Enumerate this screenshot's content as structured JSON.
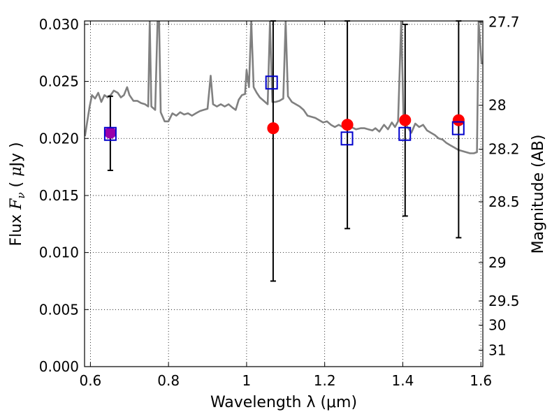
{
  "chart_data": {
    "type": "scatter",
    "xlabel": "Wavelength  λ (μm)",
    "ylabel_parts": [
      "Flux  ",
      "F",
      "ν",
      "  ( ",
      "μ",
      "Jy )"
    ],
    "y2label": "Magnitude (AB)",
    "xlim": [
      0.585,
      1.605
    ],
    "ylim": [
      0.0,
      0.0303
    ],
    "x_ticks": [
      0.6,
      0.8,
      1.0,
      1.2,
      1.4,
      1.6
    ],
    "x_tick_labels": [
      "0.6",
      "0.8",
      "1",
      "1.2",
      "1.4",
      "1.6"
    ],
    "y_ticks": [
      0.0,
      0.005,
      0.01,
      0.015,
      0.02,
      0.025,
      0.03
    ],
    "y_tick_labels": [
      "0.000",
      "0.005",
      "0.010",
      "0.015",
      "0.020",
      "0.025",
      "0.030"
    ],
    "magnitude_ticks": [
      27.7,
      28,
      28.2,
      28.5,
      29,
      29.5,
      30,
      31
    ],
    "magnitude_tick_labels": [
      "27.7",
      "28",
      "28.2",
      "28.5",
      "29",
      "29.5",
      "30",
      "31"
    ],
    "grid": true,
    "colors": {
      "observed": "#ff0000",
      "model": "#0000cc",
      "spectrum": "#808080",
      "errorbar": "#000000",
      "overlap": "#9900aa"
    },
    "series": [
      {
        "marker": "filled-circle",
        "x": [
          0.651,
          1.068,
          1.258,
          1.406,
          1.543
        ],
        "y": [
          0.0205,
          0.0209,
          0.0212,
          0.0216,
          0.0216
        ],
        "yerr_low": [
          0.0172,
          0.0075,
          0.0121,
          0.0132,
          0.0113
        ],
        "yerr_high": [
          0.0237,
          0.0303,
          0.0303,
          0.03,
          0.0303
        ]
      },
      {
        "marker": "open-square",
        "x": [
          0.651,
          1.064,
          1.257,
          1.405,
          1.542
        ],
        "y": [
          0.0204,
          0.0249,
          0.02,
          0.0204,
          0.0209
        ]
      },
      {
        "marker": "line",
        "points": [
          [
            0.586,
            0.0202
          ],
          [
            0.592,
            0.0215
          ],
          [
            0.598,
            0.0228
          ],
          [
            0.604,
            0.0238
          ],
          [
            0.612,
            0.0235
          ],
          [
            0.62,
            0.024
          ],
          [
            0.628,
            0.0232
          ],
          [
            0.636,
            0.0238
          ],
          [
            0.644,
            0.0236
          ],
          [
            0.652,
            0.0238
          ],
          [
            0.66,
            0.0242
          ],
          [
            0.67,
            0.024
          ],
          [
            0.678,
            0.0236
          ],
          [
            0.686,
            0.0238
          ],
          [
            0.694,
            0.0245
          ],
          [
            0.7,
            0.0238
          ],
          [
            0.71,
            0.0233
          ],
          [
            0.72,
            0.0233
          ],
          [
            0.73,
            0.0231
          ],
          [
            0.74,
            0.023
          ],
          [
            0.748,
            0.0228
          ],
          [
            0.752,
            0.0303
          ],
          [
            0.756,
            0.0228
          ],
          [
            0.766,
            0.0225
          ],
          [
            0.772,
            0.0303
          ],
          [
            0.776,
            0.0303
          ],
          [
            0.78,
            0.0223
          ],
          [
            0.79,
            0.0215
          ],
          [
            0.8,
            0.0215
          ],
          [
            0.81,
            0.0222
          ],
          [
            0.82,
            0.022
          ],
          [
            0.83,
            0.0223
          ],
          [
            0.84,
            0.0221
          ],
          [
            0.85,
            0.0222
          ],
          [
            0.86,
            0.022
          ],
          [
            0.87,
            0.0222
          ],
          [
            0.88,
            0.0224
          ],
          [
            0.89,
            0.0225
          ],
          [
            0.9,
            0.0226
          ],
          [
            0.908,
            0.0255
          ],
          [
            0.914,
            0.023
          ],
          [
            0.924,
            0.0228
          ],
          [
            0.934,
            0.023
          ],
          [
            0.944,
            0.0228
          ],
          [
            0.954,
            0.023
          ],
          [
            0.964,
            0.0227
          ],
          [
            0.972,
            0.0225
          ],
          [
            0.98,
            0.0234
          ],
          [
            0.988,
            0.0238
          ],
          [
            0.996,
            0.0239
          ],
          [
            1.0,
            0.026
          ],
          [
            1.006,
            0.0245
          ],
          [
            1.012,
            0.0303
          ],
          [
            1.018,
            0.0245
          ],
          [
            1.026,
            0.024
          ],
          [
            1.034,
            0.0236
          ],
          [
            1.044,
            0.0233
          ],
          [
            1.054,
            0.023
          ],
          [
            1.06,
            0.0303
          ],
          [
            1.066,
            0.0232
          ],
          [
            1.074,
            0.0232
          ],
          [
            1.084,
            0.0233
          ],
          [
            1.094,
            0.0235
          ],
          [
            1.1,
            0.0303
          ],
          [
            1.106,
            0.0237
          ],
          [
            1.116,
            0.0232
          ],
          [
            1.126,
            0.023
          ],
          [
            1.136,
            0.0228
          ],
          [
            1.146,
            0.0225
          ],
          [
            1.156,
            0.022
          ],
          [
            1.166,
            0.0219
          ],
          [
            1.176,
            0.0218
          ],
          [
            1.186,
            0.0216
          ],
          [
            1.196,
            0.0214
          ],
          [
            1.206,
            0.0215
          ],
          [
            1.216,
            0.0212
          ],
          [
            1.226,
            0.021
          ],
          [
            1.236,
            0.0212
          ],
          [
            1.246,
            0.021
          ],
          [
            1.258,
            0.0211
          ],
          [
            1.268,
            0.021
          ],
          [
            1.28,
            0.0208
          ],
          [
            1.292,
            0.0209
          ],
          [
            1.302,
            0.0209
          ],
          [
            1.312,
            0.0208
          ],
          [
            1.322,
            0.0207
          ],
          [
            1.33,
            0.0209
          ],
          [
            1.34,
            0.0206
          ],
          [
            1.352,
            0.0212
          ],
          [
            1.362,
            0.0208
          ],
          [
            1.372,
            0.0214
          ],
          [
            1.38,
            0.021
          ],
          [
            1.388,
            0.0215
          ],
          [
            1.396,
            0.0303
          ],
          [
            1.402,
            0.0215
          ],
          [
            1.412,
            0.021
          ],
          [
            1.422,
            0.0205
          ],
          [
            1.432,
            0.0213
          ],
          [
            1.442,
            0.021
          ],
          [
            1.452,
            0.0212
          ],
          [
            1.462,
            0.0207
          ],
          [
            1.472,
            0.0205
          ],
          [
            1.482,
            0.0203
          ],
          [
            1.492,
            0.02
          ],
          [
            1.502,
            0.0199
          ],
          [
            1.512,
            0.0196
          ],
          [
            1.522,
            0.0194
          ],
          [
            1.532,
            0.0192
          ],
          [
            1.542,
            0.019
          ],
          [
            1.552,
            0.0189
          ],
          [
            1.562,
            0.0188
          ],
          [
            1.572,
            0.0187
          ],
          [
            1.582,
            0.0187
          ],
          [
            1.59,
            0.0188
          ],
          [
            1.594,
            0.0303
          ],
          [
            1.598,
            0.0285
          ],
          [
            1.602,
            0.0265
          ]
        ]
      }
    ]
  }
}
